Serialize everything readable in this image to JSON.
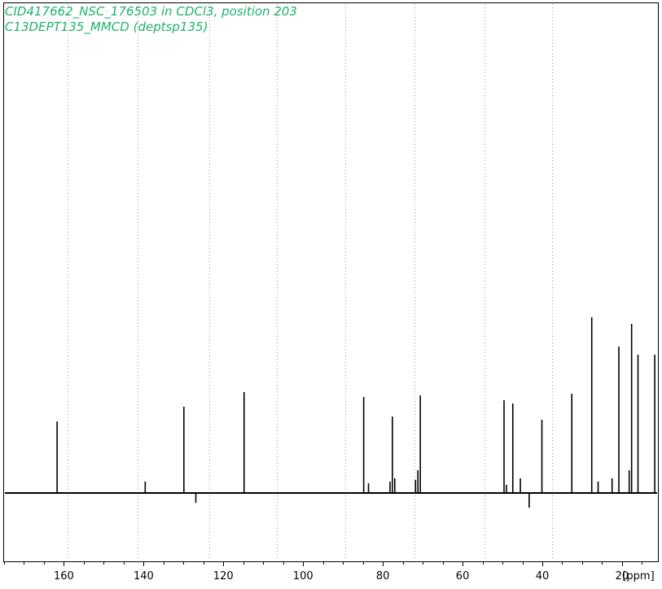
{
  "header": {
    "title_line1": "CID417662_NSC_176503 in CDCl3, position 203",
    "title_line2": "C13DEPT135_MMCD (deptsp135)"
  },
  "colors": {
    "title_text": "#1db36b",
    "spectrum": "#000000",
    "gridline": "#9a9a9a",
    "border": "#000000"
  },
  "chart_data": {
    "type": "line",
    "xlabel": "[ppm]",
    "x_reversed": true,
    "xlim": [
      175,
      11
    ],
    "ylim": [
      -11,
      108
    ],
    "x_ticks": [
      160,
      140,
      120,
      100,
      80,
      60,
      40,
      20
    ],
    "x_tick_labels": [
      "160",
      "140",
      "120",
      "100",
      "80",
      "60",
      "40",
      "20"
    ],
    "vertical_dotted_gridlines_ppm": [
      159,
      141.5,
      123.5,
      106.5,
      89.5,
      72,
      54.5,
      37.5
    ],
    "peaks": [
      {
        "ppm": 161.7,
        "intensity": 44
      },
      {
        "ppm": 139.6,
        "intensity": 7
      },
      {
        "ppm": 129.9,
        "intensity": 53
      },
      {
        "ppm": 126.9,
        "intensity": -6
      },
      {
        "ppm": 114.8,
        "intensity": 62
      },
      {
        "ppm": 84.8,
        "intensity": 59
      },
      {
        "ppm": 83.6,
        "intensity": 6
      },
      {
        "ppm": 78.2,
        "intensity": 7
      },
      {
        "ppm": 77.6,
        "intensity": 47
      },
      {
        "ppm": 77.0,
        "intensity": 9
      },
      {
        "ppm": 71.8,
        "intensity": 8
      },
      {
        "ppm": 71.2,
        "intensity": 14
      },
      {
        "ppm": 70.6,
        "intensity": 60
      },
      {
        "ppm": 49.6,
        "intensity": 57
      },
      {
        "ppm": 49.0,
        "intensity": 5
      },
      {
        "ppm": 47.4,
        "intensity": 55
      },
      {
        "ppm": 45.5,
        "intensity": 9
      },
      {
        "ppm": 43.3,
        "intensity": -9
      },
      {
        "ppm": 40.1,
        "intensity": 45
      },
      {
        "ppm": 32.6,
        "intensity": 61
      },
      {
        "ppm": 27.6,
        "intensity": 108
      },
      {
        "ppm": 26.0,
        "intensity": 7
      },
      {
        "ppm": 22.5,
        "intensity": 9
      },
      {
        "ppm": 20.8,
        "intensity": 90
      },
      {
        "ppm": 18.2,
        "intensity": 14
      },
      {
        "ppm": 17.6,
        "intensity": 104
      },
      {
        "ppm": 16.0,
        "intensity": 85
      },
      {
        "ppm": 11.8,
        "intensity": 85
      }
    ]
  }
}
